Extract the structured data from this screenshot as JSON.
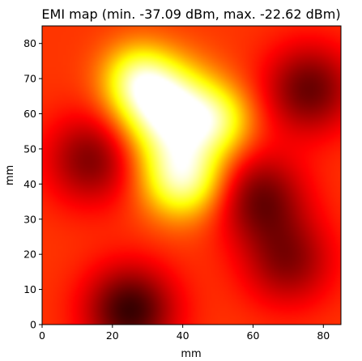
{
  "chart_data": {
    "type": "heatmap",
    "title": "EMI map (min. -37.09 dBm, max. -22.62 dBm)",
    "xlabel": "mm",
    "ylabel": "mm",
    "xlim": [
      0,
      85
    ],
    "ylim": [
      0,
      85
    ],
    "x_ticks": [
      "0",
      "20",
      "40",
      "60",
      "80"
    ],
    "y_ticks": [
      "0",
      "10",
      "20",
      "30",
      "40",
      "50",
      "60",
      "70",
      "80"
    ],
    "min_dbm": -37.09,
    "max_dbm": -22.62,
    "colormap": "hot",
    "grid": false,
    "hotspots": [
      {
        "x": 36,
        "y": 61,
        "value": -22.62
      },
      {
        "x": 40,
        "y": 42,
        "value": -24.3
      },
      {
        "x": 27,
        "y": 70,
        "value": -26.5
      },
      {
        "x": 50,
        "y": 58,
        "value": -27.0
      }
    ],
    "cold_spots": [
      {
        "x": 25,
        "y": 4,
        "value": -37.09
      },
      {
        "x": 76,
        "y": 67,
        "value": -36.0
      },
      {
        "x": 14,
        "y": 47,
        "value": -35.5
      },
      {
        "x": 62,
        "y": 36,
        "value": -35.8
      },
      {
        "x": 70,
        "y": 18,
        "value": -35.2
      }
    ]
  }
}
